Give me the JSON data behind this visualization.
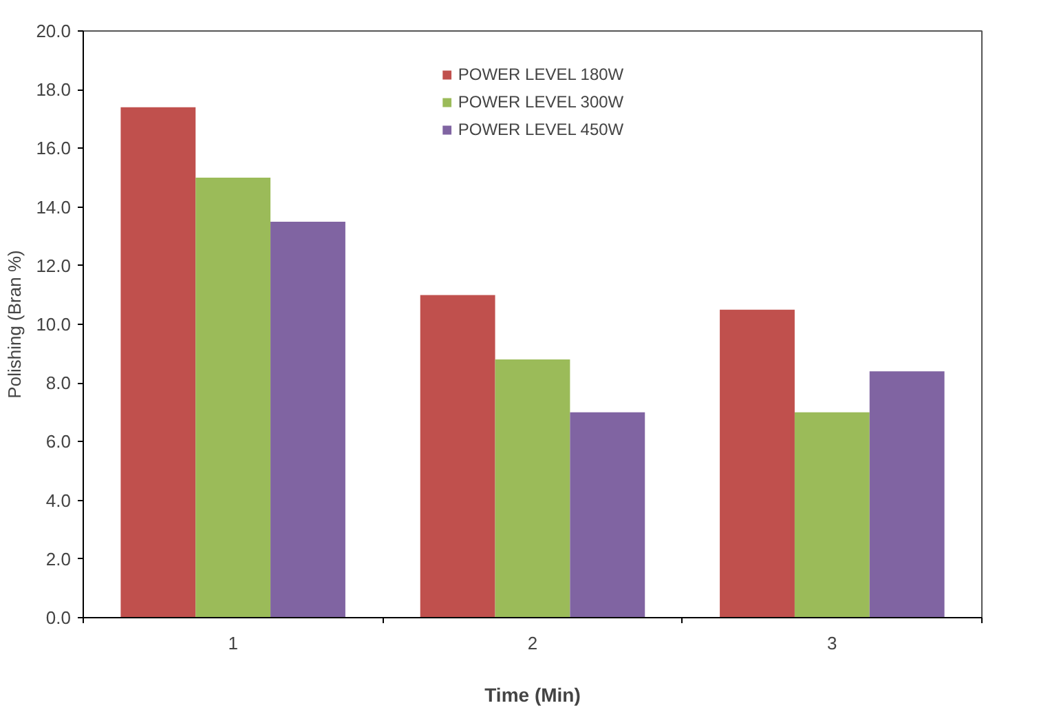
{
  "chart_data": {
    "type": "bar",
    "xlabel": "Time (Min)",
    "ylabel": "Polishing (Bran %)",
    "categories": [
      "1",
      "2",
      "3"
    ],
    "series": [
      {
        "name": "POWER LEVEL 180W",
        "color": "#c0504d",
        "values": [
          17.4,
          11.0,
          10.5
        ]
      },
      {
        "name": "POWER LEVEL 300W",
        "color": "#9bbb59",
        "values": [
          15.0,
          8.8,
          7.0
        ]
      },
      {
        "name": "POWER LEVEL 450W",
        "color": "#8064a2",
        "values": [
          13.5,
          7.0,
          8.4
        ]
      }
    ],
    "ylim": [
      0,
      20
    ],
    "yticks": [
      {
        "value": 0,
        "label": "0.0"
      },
      {
        "value": 2,
        "label": "2.0"
      },
      {
        "value": 4,
        "label": "4.0"
      },
      {
        "value": 6,
        "label": "6.0"
      },
      {
        "value": 8,
        "label": "8.0"
      },
      {
        "value": 10,
        "label": "10.0"
      },
      {
        "value": 12,
        "label": "12.0"
      },
      {
        "value": 14,
        "label": "14.0"
      },
      {
        "value": 16,
        "label": "16.0"
      },
      {
        "value": 18,
        "label": "18.0"
      },
      {
        "value": 20,
        "label": "20.0"
      }
    ],
    "grid": false,
    "legend": "top"
  }
}
